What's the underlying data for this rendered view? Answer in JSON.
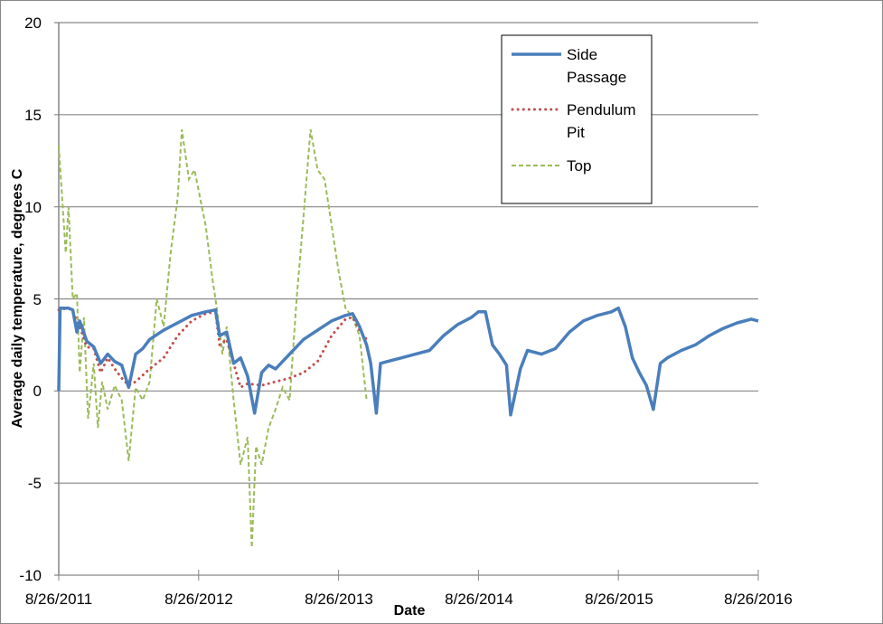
{
  "chart_data": {
    "type": "line",
    "title": "",
    "xlabel": "Date",
    "ylabel": "Average daily temperature, degrees C",
    "ylim": [
      -10,
      20
    ],
    "yticks": [
      -10,
      -5,
      0,
      5,
      10,
      15,
      20
    ],
    "xticks": [
      "8/26/2011",
      "8/26/2012",
      "8/26/2013",
      "8/26/2014",
      "8/26/2015",
      "8/26/2016"
    ],
    "xlim_years": [
      2011.65,
      2016.65
    ],
    "grid": {
      "horizontal": true,
      "vertical": false
    },
    "legend_position": "top-right inside",
    "series": [
      {
        "name": "Side Passage",
        "color": "#4a7ebb",
        "style": "solid",
        "points": [
          [
            2011.65,
            0.0
          ],
          [
            2011.66,
            4.5
          ],
          [
            2011.72,
            4.5
          ],
          [
            2011.75,
            4.4
          ],
          [
            2011.78,
            3.2
          ],
          [
            2011.8,
            3.8
          ],
          [
            2011.85,
            2.7
          ],
          [
            2011.9,
            2.4
          ],
          [
            2011.95,
            1.5
          ],
          [
            2012.0,
            2.0
          ],
          [
            2012.05,
            1.6
          ],
          [
            2012.1,
            1.4
          ],
          [
            2012.15,
            0.2
          ],
          [
            2012.2,
            2.0
          ],
          [
            2012.25,
            2.3
          ],
          [
            2012.3,
            2.8
          ],
          [
            2012.4,
            3.3
          ],
          [
            2012.5,
            3.7
          ],
          [
            2012.6,
            4.1
          ],
          [
            2012.7,
            4.3
          ],
          [
            2012.77,
            4.4
          ],
          [
            2012.8,
            3.0
          ],
          [
            2012.85,
            3.2
          ],
          [
            2012.9,
            1.5
          ],
          [
            2012.95,
            1.8
          ],
          [
            2013.0,
            0.8
          ],
          [
            2013.05,
            -1.2
          ],
          [
            2013.1,
            1.0
          ],
          [
            2013.15,
            1.4
          ],
          [
            2013.2,
            1.2
          ],
          [
            2013.3,
            2.0
          ],
          [
            2013.4,
            2.8
          ],
          [
            2013.5,
            3.3
          ],
          [
            2013.6,
            3.8
          ],
          [
            2013.7,
            4.1
          ],
          [
            2013.75,
            4.2
          ],
          [
            2013.8,
            3.5
          ],
          [
            2013.85,
            2.5
          ],
          [
            2013.88,
            1.5
          ],
          [
            2013.92,
            -1.2
          ],
          [
            2013.95,
            1.5
          ],
          [
            2014.0,
            1.6
          ],
          [
            2014.1,
            1.8
          ],
          [
            2014.2,
            2.0
          ],
          [
            2014.3,
            2.2
          ],
          [
            2014.4,
            3.0
          ],
          [
            2014.5,
            3.6
          ],
          [
            2014.6,
            4.0
          ],
          [
            2014.65,
            4.3
          ],
          [
            2014.7,
            4.3
          ],
          [
            2014.75,
            2.5
          ],
          [
            2014.8,
            2.0
          ],
          [
            2014.85,
            1.4
          ],
          [
            2014.88,
            -1.3
          ],
          [
            2014.95,
            1.2
          ],
          [
            2015.0,
            2.2
          ],
          [
            2015.1,
            2.0
          ],
          [
            2015.2,
            2.3
          ],
          [
            2015.3,
            3.2
          ],
          [
            2015.4,
            3.8
          ],
          [
            2015.5,
            4.1
          ],
          [
            2015.6,
            4.3
          ],
          [
            2015.65,
            4.5
          ],
          [
            2015.7,
            3.5
          ],
          [
            2015.75,
            1.8
          ],
          [
            2015.8,
            1.0
          ],
          [
            2015.85,
            0.3
          ],
          [
            2015.9,
            -1.0
          ],
          [
            2015.95,
            1.5
          ],
          [
            2016.0,
            1.8
          ],
          [
            2016.1,
            2.2
          ],
          [
            2016.2,
            2.5
          ],
          [
            2016.3,
            3.0
          ],
          [
            2016.4,
            3.4
          ],
          [
            2016.5,
            3.7
          ],
          [
            2016.6,
            3.9
          ],
          [
            2016.65,
            3.8
          ]
        ]
      },
      {
        "name": "Pendulum Pit",
        "color": "#c0504d",
        "style": "dotted",
        "points": [
          [
            2011.65,
            4.4
          ],
          [
            2011.72,
            4.5
          ],
          [
            2011.75,
            4.3
          ],
          [
            2011.8,
            3.5
          ],
          [
            2011.85,
            2.4
          ],
          [
            2011.9,
            2.3
          ],
          [
            2011.95,
            1.0
          ],
          [
            2012.0,
            1.8
          ],
          [
            2012.05,
            1.2
          ],
          [
            2012.1,
            0.7
          ],
          [
            2012.15,
            0.3
          ],
          [
            2012.2,
            0.5
          ],
          [
            2012.3,
            1.2
          ],
          [
            2012.4,
            1.8
          ],
          [
            2012.5,
            3.0
          ],
          [
            2012.6,
            3.8
          ],
          [
            2012.7,
            4.2
          ],
          [
            2012.77,
            4.3
          ],
          [
            2012.8,
            2.5
          ],
          [
            2012.85,
            2.8
          ],
          [
            2012.9,
            1.5
          ],
          [
            2012.95,
            0.2
          ],
          [
            2013.0,
            0.4
          ],
          [
            2013.1,
            0.3
          ],
          [
            2013.2,
            0.5
          ],
          [
            2013.3,
            0.7
          ],
          [
            2013.4,
            1.0
          ],
          [
            2013.5,
            1.6
          ],
          [
            2013.6,
            3.0
          ],
          [
            2013.7,
            3.9
          ],
          [
            2013.75,
            4.0
          ],
          [
            2013.8,
            3.3
          ],
          [
            2013.85,
            2.8
          ]
        ]
      },
      {
        "name": "Top",
        "color": "#9bbb59",
        "style": "dashed",
        "points": [
          [
            2011.65,
            13.3
          ],
          [
            2011.67,
            11.0
          ],
          [
            2011.7,
            7.5
          ],
          [
            2011.72,
            10.0
          ],
          [
            2011.75,
            5.0
          ],
          [
            2011.78,
            5.3
          ],
          [
            2011.8,
            1.0
          ],
          [
            2011.83,
            4.0
          ],
          [
            2011.86,
            -1.5
          ],
          [
            2011.9,
            1.5
          ],
          [
            2011.93,
            -2.0
          ],
          [
            2011.96,
            0.5
          ],
          [
            2012.0,
            -1.0
          ],
          [
            2012.05,
            0.3
          ],
          [
            2012.1,
            -0.5
          ],
          [
            2012.15,
            -3.8
          ],
          [
            2012.2,
            0.2
          ],
          [
            2012.25,
            -0.5
          ],
          [
            2012.3,
            0.5
          ],
          [
            2012.35,
            5.0
          ],
          [
            2012.4,
            3.5
          ],
          [
            2012.45,
            7.5
          ],
          [
            2012.5,
            10.5
          ],
          [
            2012.53,
            14.2
          ],
          [
            2012.58,
            11.5
          ],
          [
            2012.62,
            12.0
          ],
          [
            2012.66,
            10.5
          ],
          [
            2012.7,
            9.0
          ],
          [
            2012.75,
            6.0
          ],
          [
            2012.78,
            4.5
          ],
          [
            2012.82,
            2.0
          ],
          [
            2012.85,
            3.5
          ],
          [
            2012.9,
            -0.5
          ],
          [
            2012.95,
            -4.0
          ],
          [
            2013.0,
            -2.5
          ],
          [
            2013.03,
            -8.5
          ],
          [
            2013.06,
            -3.0
          ],
          [
            2013.1,
            -4.0
          ],
          [
            2013.15,
            -2.0
          ],
          [
            2013.2,
            -1.0
          ],
          [
            2013.25,
            0.2
          ],
          [
            2013.3,
            -0.5
          ],
          [
            2013.35,
            5.0
          ],
          [
            2013.4,
            9.5
          ],
          [
            2013.45,
            14.2
          ],
          [
            2013.5,
            12.0
          ],
          [
            2013.55,
            11.5
          ],
          [
            2013.6,
            9.0
          ],
          [
            2013.65,
            6.5
          ],
          [
            2013.7,
            4.5
          ],
          [
            2013.75,
            4.0
          ],
          [
            2013.8,
            3.0
          ],
          [
            2013.85,
            -0.5
          ]
        ]
      }
    ]
  },
  "legend": {
    "items": [
      {
        "label_line1": "Side",
        "label_line2": "Passage"
      },
      {
        "label_line1": "Pendulum",
        "label_line2": "Pit"
      },
      {
        "label_line1": "Top",
        "label_line2": ""
      }
    ]
  },
  "axes": {
    "y_title": "Average daily temperature, degrees C",
    "x_title": "Date",
    "y_tick_labels": [
      "20",
      "15",
      "10",
      "5",
      "0",
      "-5",
      "-10"
    ],
    "x_tick_labels": [
      "8/26/2011",
      "8/26/2012",
      "8/26/2013",
      "8/26/2014",
      "8/26/2015",
      "8/26/2016"
    ]
  },
  "colors": {
    "side_passage": "#4a7ebb",
    "pendulum_pit": "#c0504d",
    "top": "#9bbb59",
    "grid": "#868686"
  }
}
